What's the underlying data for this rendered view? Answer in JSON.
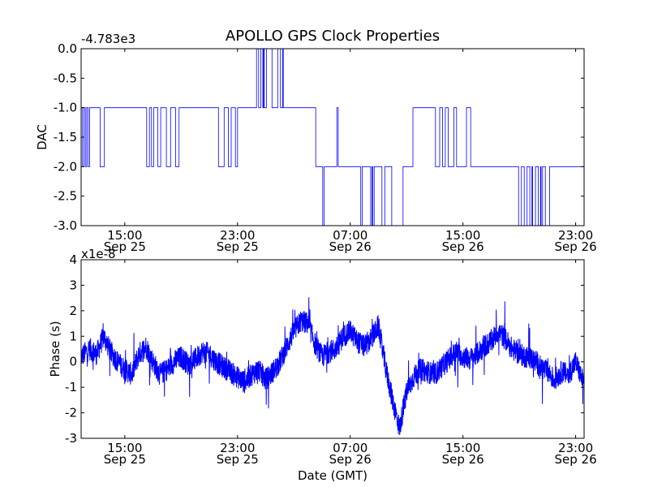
{
  "colors": {
    "series": "#0000ff",
    "axes": "#000000",
    "background": "#ffffff"
  },
  "chart_data": [
    {
      "type": "line",
      "title": "APOLLO GPS Clock Properties",
      "ylabel": "DAC",
      "xlabel": "",
      "offset_text": "-4.783e3",
      "ylim": [
        -3.0,
        0.0
      ],
      "yticks": [
        {
          "value": 0.0,
          "label": "0.0"
        },
        {
          "value": -0.5,
          "label": "-0.5"
        },
        {
          "value": -1.0,
          "label": "-1.0"
        },
        {
          "value": -1.5,
          "label": "-1.5"
        },
        {
          "value": -2.0,
          "label": "-2.0"
        },
        {
          "value": -2.5,
          "label": "-2.5"
        },
        {
          "value": -3.0,
          "label": "-3.0"
        }
      ],
      "xlim_hours": [
        11.9,
        47.6
      ],
      "xticks": [
        {
          "hour": 15,
          "time": "15:00",
          "date": "Sep 25"
        },
        {
          "hour": 23,
          "time": "23:00",
          "date": "Sep 25"
        },
        {
          "hour": 31,
          "time": "07:00",
          "date": "Sep 26"
        },
        {
          "hour": 39,
          "time": "15:00",
          "date": "Sep 26"
        },
        {
          "hour": 47,
          "time": "23:00",
          "date": "Sep 26"
        }
      ],
      "series": [
        {
          "x_hours": [
            11.9,
            12.0,
            12.1,
            12.2,
            12.3,
            12.4,
            12.5,
            13.2,
            13.25,
            13.5,
            13.55,
            14.0,
            14.05,
            16.5,
            16.55,
            16.7,
            16.75,
            16.85,
            16.9,
            17.0,
            17.05,
            17.3,
            17.35,
            17.5,
            17.55,
            17.9,
            17.95,
            18.2,
            18.25,
            18.55,
            18.6,
            18.8,
            18.85,
            19.1,
            19.15,
            21.6,
            21.65,
            22.0,
            22.05,
            22.3,
            22.35,
            22.5,
            22.55,
            22.8,
            22.85,
            22.95,
            23.0,
            23.3,
            23.35,
            24.3,
            24.35,
            24.45,
            24.5,
            24.6,
            24.65,
            24.75,
            24.8,
            24.85,
            24.9,
            25.0,
            25.05,
            25.4,
            25.45,
            25.8,
            25.85,
            26.0,
            26.05,
            26.2,
            26.25,
            26.5,
            26.55,
            27.0,
            27.05,
            27.3,
            27.35,
            28.5,
            28.55,
            29.0,
            29.05,
            29.1,
            29.15,
            30.0,
            30.05,
            30.1,
            30.15,
            31.5,
            31.55,
            31.7,
            31.75,
            31.8,
            31.85,
            32.2,
            32.25,
            32.4,
            32.45,
            32.55,
            32.6,
            32.7,
            32.75,
            33.2,
            33.25,
            33.4,
            33.45,
            33.9,
            33.95,
            34.7,
            34.75,
            35.4,
            35.45,
            36.5,
            36.55,
            37.0,
            37.05,
            37.3,
            37.35,
            37.5,
            37.55,
            37.7,
            37.75,
            37.9,
            37.95,
            38.3,
            38.35,
            38.5,
            38.55,
            39.2,
            39.25,
            39.5,
            39.55,
            40.0,
            40.05,
            42.5,
            42.55,
            42.9,
            42.95,
            43.1,
            43.15,
            43.3,
            43.35,
            43.5,
            43.55,
            43.7,
            43.75,
            43.9,
            43.95,
            44.1,
            44.15,
            44.3,
            44.35,
            44.5,
            44.55,
            44.6,
            44.65,
            44.8,
            44.85,
            45.1,
            45.15,
            47.6
          ],
          "values": [
            -1,
            -2,
            -1,
            -2,
            -1,
            -2,
            -1,
            -1,
            -2,
            -2,
            -1,
            -1,
            -1,
            -1,
            -2,
            -2,
            -1,
            -1,
            -2,
            -2,
            -1,
            -1,
            -2,
            -2,
            -1,
            -1,
            -2,
            -2,
            -1,
            -1,
            -2,
            -2,
            -1,
            -1,
            -1,
            -1,
            -2,
            -2,
            -1,
            -1,
            -2,
            -2,
            -1,
            -1,
            -2,
            -2,
            -1,
            -1,
            -1,
            -1,
            0,
            0,
            -1,
            -1,
            0,
            0,
            -1,
            0,
            -1,
            -1,
            0,
            0,
            -1,
            -1,
            0,
            0,
            -1,
            0,
            -1,
            -1,
            -1,
            -1,
            -1,
            -1,
            -1,
            -1,
            -2,
            -2,
            -3,
            -3,
            -2,
            -2,
            -1,
            -1,
            -2,
            -2,
            -2,
            -2,
            -3,
            -3,
            -2,
            -2,
            -2,
            -2,
            -3,
            -2,
            -3,
            -2,
            -2,
            -2,
            -3,
            -3,
            -2,
            -2,
            -3,
            -3,
            -2,
            -2,
            -1,
            -1,
            -1,
            -1,
            -2,
            -2,
            -1,
            -1,
            -2,
            -2,
            -1,
            -1,
            -2,
            -2,
            -1,
            -1,
            -2,
            -2,
            -1,
            -1,
            -2,
            -2,
            -2,
            -2,
            -2,
            -2,
            -3,
            -3,
            -2,
            -2,
            -3,
            -3,
            -2,
            -2,
            -3,
            -2,
            -3,
            -3,
            -2,
            -2,
            -3,
            -2,
            -3,
            -3,
            -2,
            -2,
            -3,
            -3,
            -2,
            -2
          ]
        }
      ]
    },
    {
      "type": "line",
      "title": "",
      "ylabel": "Phase (s)",
      "xlabel": "Date (GMT)",
      "offset_text": "x1e-8",
      "ylim": [
        -3,
        4
      ],
      "yticks": [
        {
          "value": 4,
          "label": "4"
        },
        {
          "value": 3,
          "label": "3"
        },
        {
          "value": 2,
          "label": "2"
        },
        {
          "value": 1,
          "label": "1"
        },
        {
          "value": 0,
          "label": "0"
        },
        {
          "value": -1,
          "label": "-1"
        },
        {
          "value": -2,
          "label": "-2"
        },
        {
          "value": -3,
          "label": "-3"
        }
      ],
      "xlim_hours": [
        11.9,
        47.6
      ],
      "xticks": [
        {
          "hour": 15,
          "time": "15:00",
          "date": "Sep 25"
        },
        {
          "hour": 23,
          "time": "23:00",
          "date": "Sep 25"
        },
        {
          "hour": 31,
          "time": "07:00",
          "date": "Sep 26"
        },
        {
          "hour": 39,
          "time": "15:00",
          "date": "Sep 26"
        },
        {
          "hour": 47,
          "time": "23:00",
          "date": "Sep 26"
        }
      ],
      "series": [
        {
          "x_hours": [
            11.9,
            12.5,
            13.0,
            13.5,
            14.0,
            14.5,
            15.0,
            15.5,
            16.0,
            16.5,
            17.0,
            17.5,
            18.0,
            18.5,
            19.0,
            19.5,
            20.0,
            20.5,
            21.0,
            21.5,
            22.0,
            22.5,
            23.0,
            23.5,
            24.0,
            24.5,
            25.0,
            25.5,
            26.0,
            26.5,
            27.0,
            27.5,
            28.0,
            28.5,
            29.0,
            29.5,
            30.0,
            30.5,
            31.0,
            31.5,
            32.0,
            32.5,
            33.0,
            33.5,
            34.0,
            34.5,
            35.0,
            35.5,
            36.0,
            36.5,
            37.0,
            37.5,
            38.0,
            38.5,
            39.0,
            39.5,
            40.0,
            40.5,
            41.0,
            41.5,
            42.0,
            42.5,
            43.0,
            43.5,
            44.0,
            44.5,
            45.0,
            45.5,
            46.0,
            46.5,
            47.0,
            47.6
          ],
          "values": [
            0.2,
            0.5,
            0.3,
            1.0,
            0.4,
            0.0,
            -0.3,
            -0.5,
            0.3,
            0.6,
            0.0,
            -0.5,
            -0.3,
            0.0,
            0.2,
            -0.1,
            0.1,
            0.4,
            0.3,
            0.0,
            -0.2,
            -0.4,
            -0.6,
            -0.8,
            -0.5,
            -0.3,
            -0.7,
            -0.4,
            0.0,
            0.6,
            1.2,
            1.6,
            1.5,
            0.7,
            0.2,
            0.4,
            0.5,
            1.0,
            1.2,
            0.8,
            0.6,
            0.9,
            1.4,
            -0.2,
            -1.5,
            -2.6,
            -1.2,
            -0.6,
            -0.3,
            -0.4,
            -0.5,
            -0.2,
            0.1,
            0.4,
            0.2,
            0.1,
            0.3,
            0.6,
            0.8,
            1.2,
            0.9,
            0.5,
            0.3,
            0.2,
            0.1,
            -0.2,
            -0.4,
            -0.7,
            -0.4,
            -0.5,
            0.0,
            -0.9
          ]
        }
      ]
    }
  ]
}
